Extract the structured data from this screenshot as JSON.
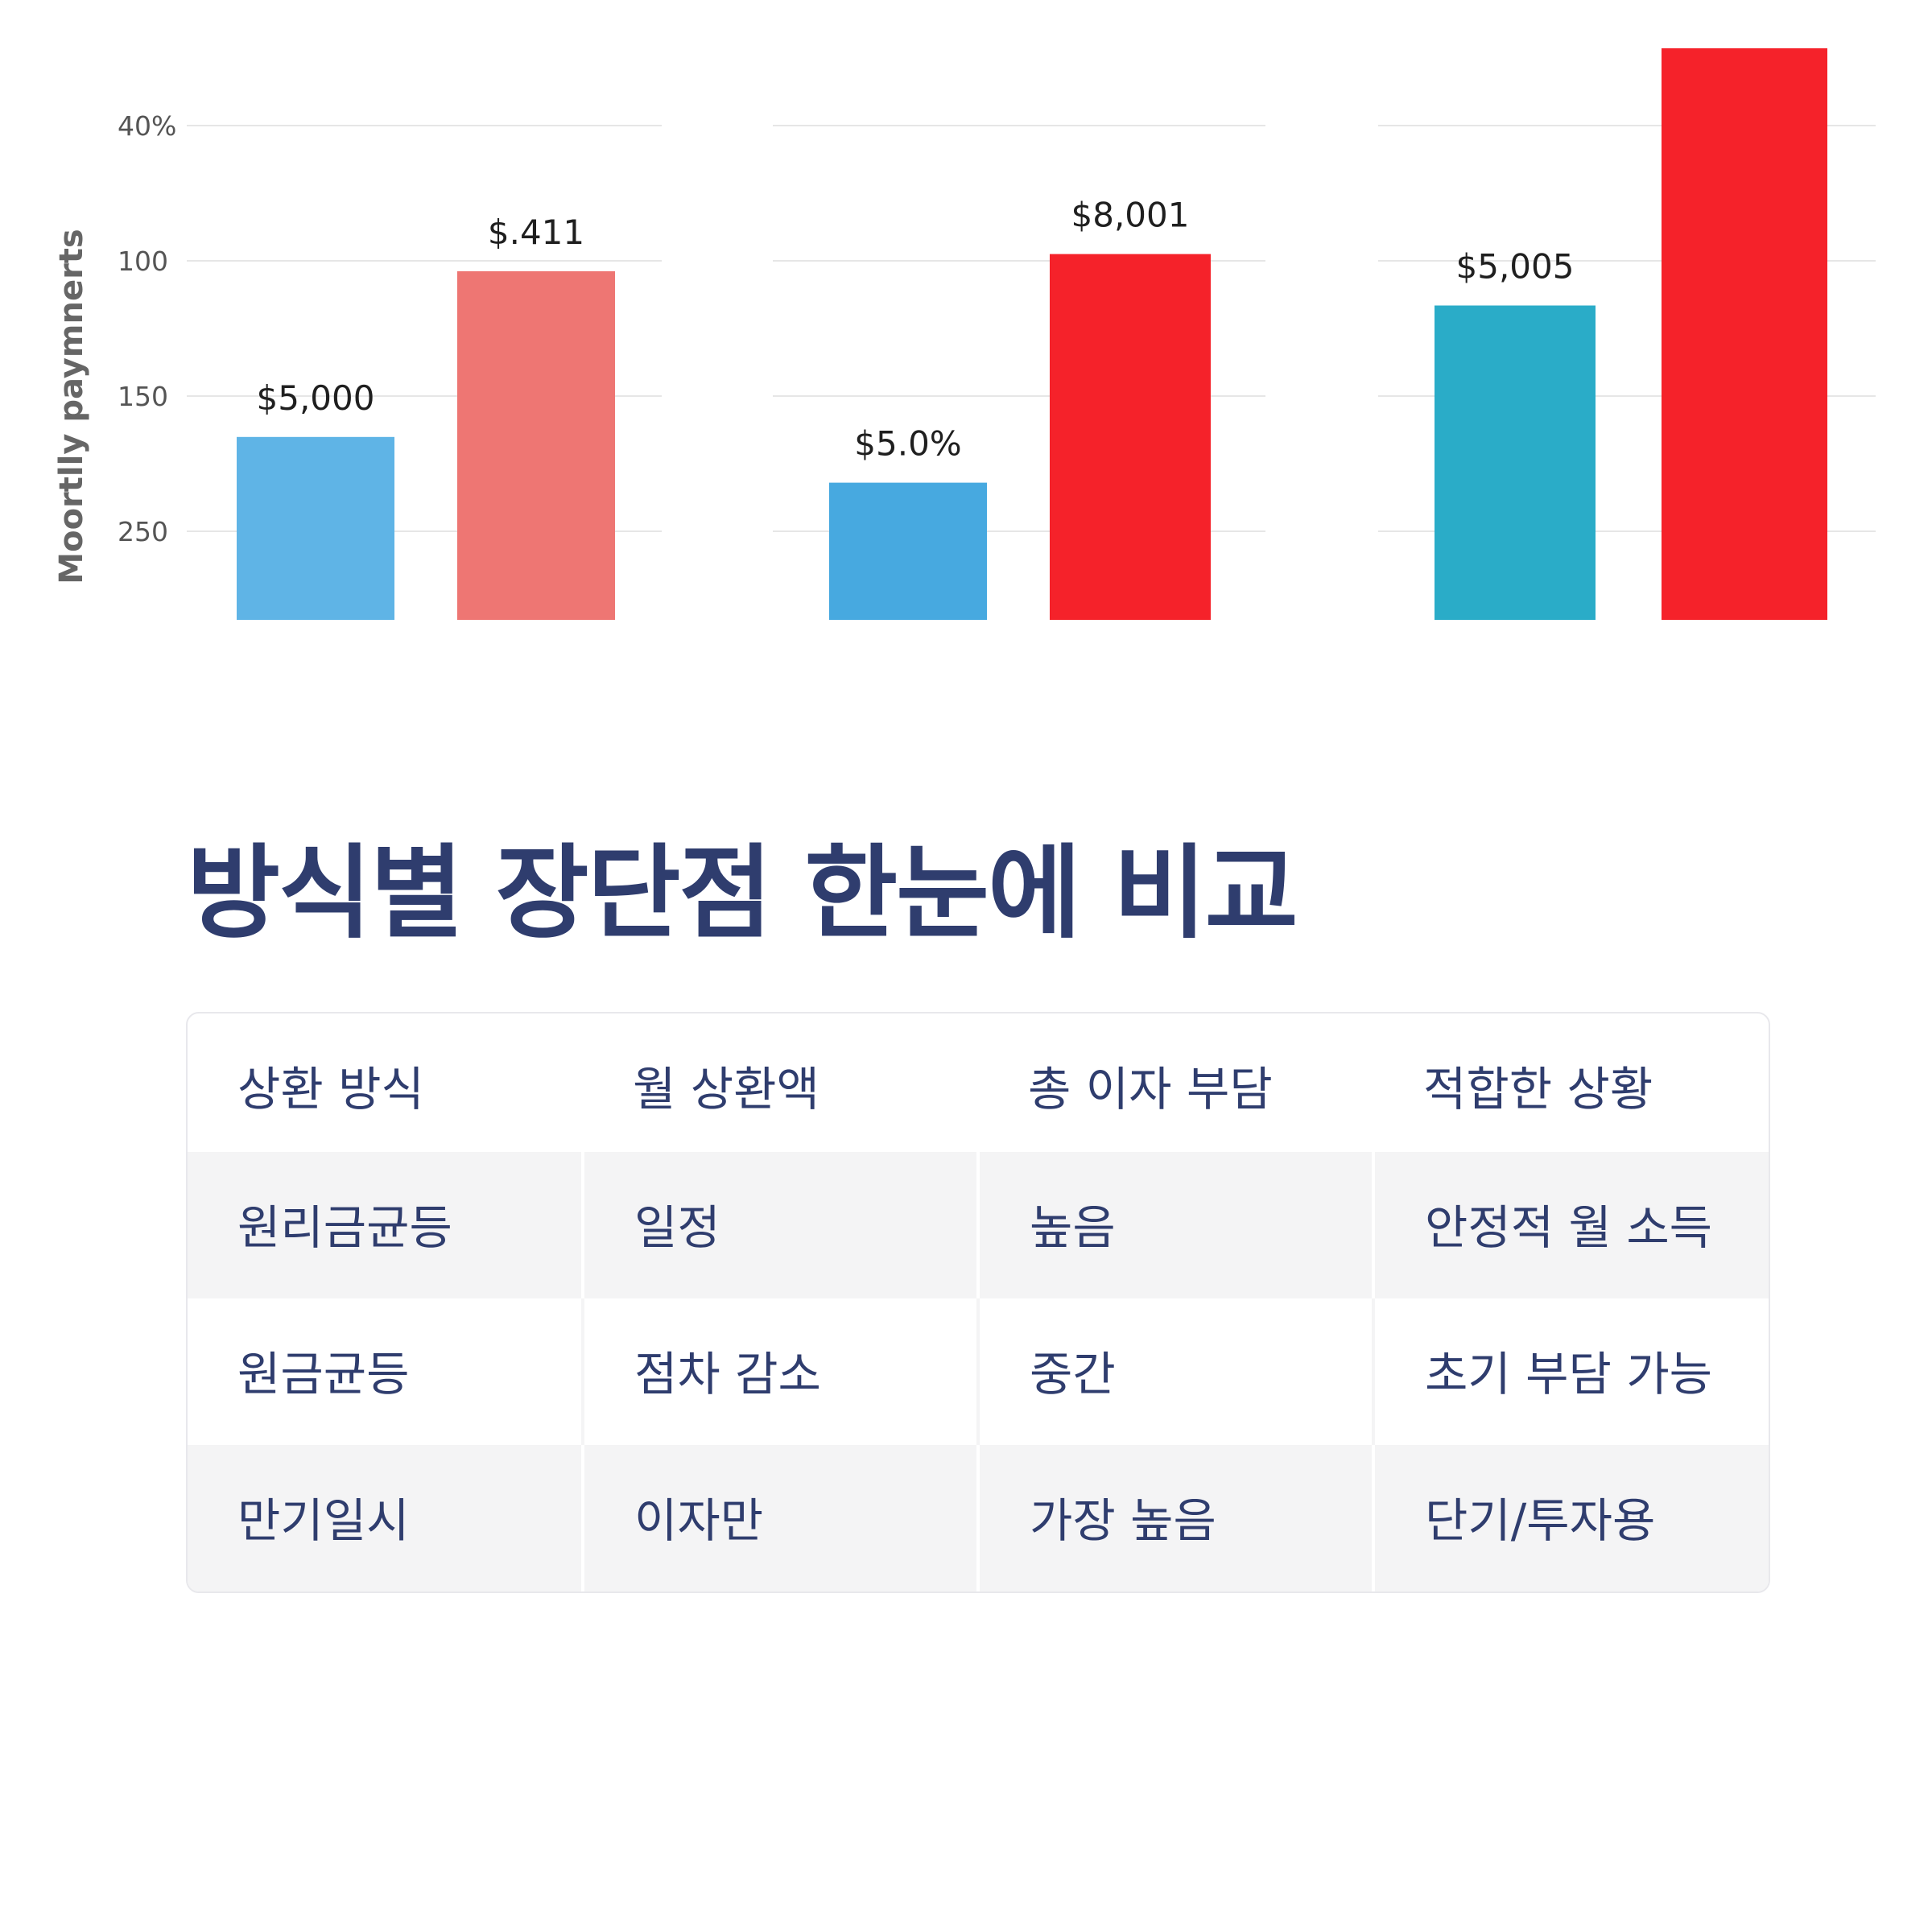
{
  "chart_data": {
    "type": "bar",
    "ylabel": "Moortlly paymnerts",
    "y_tick_labels": [
      "40%",
      "100",
      "150",
      "250"
    ],
    "grid": true,
    "groups": [
      {
        "bars": [
          {
            "label": "$5,000",
            "color": "#5fb4e6",
            "relative_height": 0.32
          },
          {
            "label": "$.411",
            "color": "#ee7673",
            "relative_height": 0.61
          }
        ]
      },
      {
        "bars": [
          {
            "label": "$5.0%",
            "color": "#47a9e0",
            "relative_height": 0.24
          },
          {
            "label": "$8,001",
            "color": "#f5222a",
            "relative_height": 0.64
          }
        ]
      },
      {
        "bars": [
          {
            "label": "$5,005",
            "color": "#2aacc8",
            "relative_height": 0.55
          },
          {
            "label": "",
            "color": "#f5222a",
            "relative_height": 1.0
          }
        ]
      }
    ]
  },
  "section": {
    "heading": "방식별 장단점 한눈에 비교"
  },
  "table": {
    "headers": [
      "상환 방식",
      "월 상환액",
      "총 이자 부담",
      "적합한 상황"
    ],
    "rows": [
      [
        "원리금균등",
        "일정",
        "높음",
        "안정적 월 소득"
      ],
      [
        "원금균등",
        "점차 감소",
        "중간",
        "초기 부담 가능"
      ],
      [
        "만기일시",
        "이자만",
        "가장 높음",
        "단기/투자용"
      ]
    ]
  },
  "colors": {
    "heading": "#2f3d6e",
    "table_text": "#2f3d6e",
    "row_shade": "#f4f4f5"
  }
}
